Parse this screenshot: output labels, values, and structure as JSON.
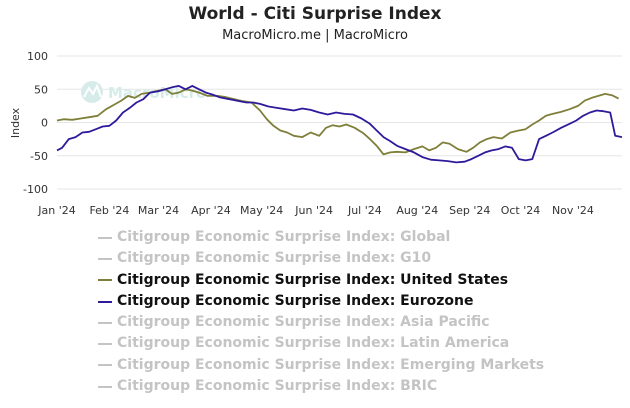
{
  "chart_data": {
    "type": "line",
    "title": "World - Citi Surprise Index",
    "subtitle": "MacroMicro.me | MacroMicro",
    "ylabel": "Index",
    "xlabel": "",
    "ylim": [
      -100,
      100
    ],
    "yticks": [
      100,
      50,
      0,
      -50,
      -100
    ],
    "x_tick_labels": [
      "Jan '24",
      "Feb '24",
      "Mar '24",
      "Apr '24",
      "May '24",
      "Jun '24",
      "Jul '24",
      "Aug '24",
      "Sep '24",
      "Oct '24",
      "Nov '24"
    ],
    "x_range": [
      "2024-01-01",
      "2024-11-30"
    ],
    "grid": "horizontal",
    "legend_position": "bottom",
    "watermark": "MacroMicro",
    "series": [
      {
        "name": "Citigroup Economic Surprise Index: Global",
        "visible": false,
        "color": "#c4c4c4",
        "points": []
      },
      {
        "name": "Citigroup Economic Surprise Index: G10",
        "visible": false,
        "color": "#c4c4c4",
        "points": []
      },
      {
        "name": "Citigroup Economic Surprise Index: United States",
        "visible": true,
        "color": "#7f7f3a",
        "points": [
          [
            "2024-01-01",
            3
          ],
          [
            "2024-01-05",
            5
          ],
          [
            "2024-01-10",
            4
          ],
          [
            "2024-01-15",
            6
          ],
          [
            "2024-01-20",
            8
          ],
          [
            "2024-01-25",
            10
          ],
          [
            "2024-01-30",
            20
          ],
          [
            "2024-02-04",
            27
          ],
          [
            "2024-02-08",
            33
          ],
          [
            "2024-02-12",
            40
          ],
          [
            "2024-02-16",
            37
          ],
          [
            "2024-02-20",
            43
          ],
          [
            "2024-02-25",
            45
          ],
          [
            "2024-03-01",
            48
          ],
          [
            "2024-03-05",
            50
          ],
          [
            "2024-03-09",
            43
          ],
          [
            "2024-03-13",
            45
          ],
          [
            "2024-03-17",
            50
          ],
          [
            "2024-03-21",
            48
          ],
          [
            "2024-03-25",
            45
          ],
          [
            "2024-03-30",
            40
          ],
          [
            "2024-04-05",
            40
          ],
          [
            "2024-04-10",
            38
          ],
          [
            "2024-04-15",
            35
          ],
          [
            "2024-04-20",
            32
          ],
          [
            "2024-04-25",
            30
          ],
          [
            "2024-04-30",
            18
          ],
          [
            "2024-05-04",
            5
          ],
          [
            "2024-05-08",
            -5
          ],
          [
            "2024-05-12",
            -12
          ],
          [
            "2024-05-16",
            -15
          ],
          [
            "2024-05-20",
            -20
          ],
          [
            "2024-05-25",
            -22
          ],
          [
            "2024-05-30",
            -15
          ],
          [
            "2024-06-04",
            -20
          ],
          [
            "2024-06-08",
            -8
          ],
          [
            "2024-06-12",
            -4
          ],
          [
            "2024-06-16",
            -6
          ],
          [
            "2024-06-20",
            -3
          ],
          [
            "2024-06-25",
            -8
          ],
          [
            "2024-06-30",
            -16
          ],
          [
            "2024-07-04",
            -25
          ],
          [
            "2024-07-08",
            -35
          ],
          [
            "2024-07-12",
            -48
          ],
          [
            "2024-07-16",
            -45
          ],
          [
            "2024-07-20",
            -44
          ],
          [
            "2024-07-25",
            -45
          ],
          [
            "2024-07-30",
            -40
          ],
          [
            "2024-08-04",
            -36
          ],
          [
            "2024-08-08",
            -42
          ],
          [
            "2024-08-12",
            -38
          ],
          [
            "2024-08-16",
            -30
          ],
          [
            "2024-08-20",
            -32
          ],
          [
            "2024-08-25",
            -40
          ],
          [
            "2024-08-30",
            -44
          ],
          [
            "2024-09-03",
            -38
          ],
          [
            "2024-09-07",
            -30
          ],
          [
            "2024-09-11",
            -25
          ],
          [
            "2024-09-15",
            -22
          ],
          [
            "2024-09-20",
            -24
          ],
          [
            "2024-09-25",
            -15
          ],
          [
            "2024-09-30",
            -12
          ],
          [
            "2024-10-04",
            -10
          ],
          [
            "2024-10-08",
            -3
          ],
          [
            "2024-10-12",
            3
          ],
          [
            "2024-10-16",
            10
          ],
          [
            "2024-10-20",
            13
          ],
          [
            "2024-10-25",
            16
          ],
          [
            "2024-10-30",
            20
          ],
          [
            "2024-11-04",
            25
          ],
          [
            "2024-11-08",
            33
          ],
          [
            "2024-11-12",
            37
          ],
          [
            "2024-11-16",
            40
          ],
          [
            "2024-11-20",
            43
          ],
          [
            "2024-11-24",
            41
          ],
          [
            "2024-11-28",
            36
          ]
        ]
      },
      {
        "name": "Citigroup Economic Surprise Index: Eurozone",
        "visible": true,
        "color": "#2e1a9b",
        "points": [
          [
            "2024-01-01",
            -42
          ],
          [
            "2024-01-04",
            -38
          ],
          [
            "2024-01-08",
            -25
          ],
          [
            "2024-01-12",
            -22
          ],
          [
            "2024-01-16",
            -15
          ],
          [
            "2024-01-20",
            -14
          ],
          [
            "2024-01-24",
            -10
          ],
          [
            "2024-01-28",
            -6
          ],
          [
            "2024-02-01",
            -5
          ],
          [
            "2024-02-05",
            3
          ],
          [
            "2024-02-09",
            15
          ],
          [
            "2024-02-13",
            22
          ],
          [
            "2024-02-17",
            30
          ],
          [
            "2024-02-21",
            35
          ],
          [
            "2024-02-25",
            45
          ],
          [
            "2024-03-01",
            47
          ],
          [
            "2024-03-05",
            50
          ],
          [
            "2024-03-09",
            53
          ],
          [
            "2024-03-13",
            55
          ],
          [
            "2024-03-17",
            50
          ],
          [
            "2024-03-21",
            55
          ],
          [
            "2024-03-25",
            50
          ],
          [
            "2024-03-29",
            45
          ],
          [
            "2024-04-02",
            42
          ],
          [
            "2024-04-06",
            38
          ],
          [
            "2024-04-10",
            36
          ],
          [
            "2024-04-14",
            34
          ],
          [
            "2024-04-18",
            32
          ],
          [
            "2024-04-22",
            30
          ],
          [
            "2024-04-26",
            30
          ],
          [
            "2024-04-30",
            28
          ],
          [
            "2024-05-05",
            24
          ],
          [
            "2024-05-10",
            22
          ],
          [
            "2024-05-15",
            20
          ],
          [
            "2024-05-20",
            18
          ],
          [
            "2024-05-25",
            21
          ],
          [
            "2024-05-30",
            19
          ],
          [
            "2024-06-04",
            15
          ],
          [
            "2024-06-09",
            12
          ],
          [
            "2024-06-14",
            15
          ],
          [
            "2024-06-19",
            13
          ],
          [
            "2024-06-24",
            12
          ],
          [
            "2024-06-29",
            6
          ],
          [
            "2024-07-04",
            -2
          ],
          [
            "2024-07-08",
            -12
          ],
          [
            "2024-07-12",
            -22
          ],
          [
            "2024-07-16",
            -28
          ],
          [
            "2024-07-20",
            -35
          ],
          [
            "2024-07-25",
            -40
          ],
          [
            "2024-07-30",
            -45
          ],
          [
            "2024-08-04",
            -52
          ],
          [
            "2024-08-09",
            -56
          ],
          [
            "2024-08-14",
            -57
          ],
          [
            "2024-08-19",
            -58
          ],
          [
            "2024-08-24",
            -60
          ],
          [
            "2024-08-29",
            -59
          ],
          [
            "2024-09-02",
            -55
          ],
          [
            "2024-09-06",
            -50
          ],
          [
            "2024-09-10",
            -45
          ],
          [
            "2024-09-14",
            -42
          ],
          [
            "2024-09-18",
            -40
          ],
          [
            "2024-09-22",
            -36
          ],
          [
            "2024-09-26",
            -38
          ],
          [
            "2024-09-30",
            -55
          ],
          [
            "2024-10-04",
            -57
          ],
          [
            "2024-10-08",
            -55
          ],
          [
            "2024-10-12",
            -25
          ],
          [
            "2024-10-16",
            -20
          ],
          [
            "2024-10-20",
            -15
          ],
          [
            "2024-10-25",
            -8
          ],
          [
            "2024-10-30",
            -2
          ],
          [
            "2024-11-03",
            3
          ],
          [
            "2024-11-07",
            10
          ],
          [
            "2024-11-11",
            15
          ],
          [
            "2024-11-15",
            18
          ],
          [
            "2024-11-19",
            17
          ],
          [
            "2024-11-23",
            15
          ],
          [
            "2024-11-26",
            -20
          ],
          [
            "2024-11-30",
            -22
          ]
        ]
      },
      {
        "name": "Citigroup Economic Surprise Index: Asia Pacific",
        "visible": false,
        "color": "#c4c4c4",
        "points": []
      },
      {
        "name": "Citigroup Economic Surprise Index: Latin America",
        "visible": false,
        "color": "#c4c4c4",
        "points": []
      },
      {
        "name": "Citigroup Economic Surprise Index: Emerging Markets",
        "visible": false,
        "color": "#c4c4c4",
        "points": []
      },
      {
        "name": "Citigroup Economic Surprise Index: BRIC",
        "visible": false,
        "color": "#c4c4c4",
        "points": []
      }
    ]
  }
}
